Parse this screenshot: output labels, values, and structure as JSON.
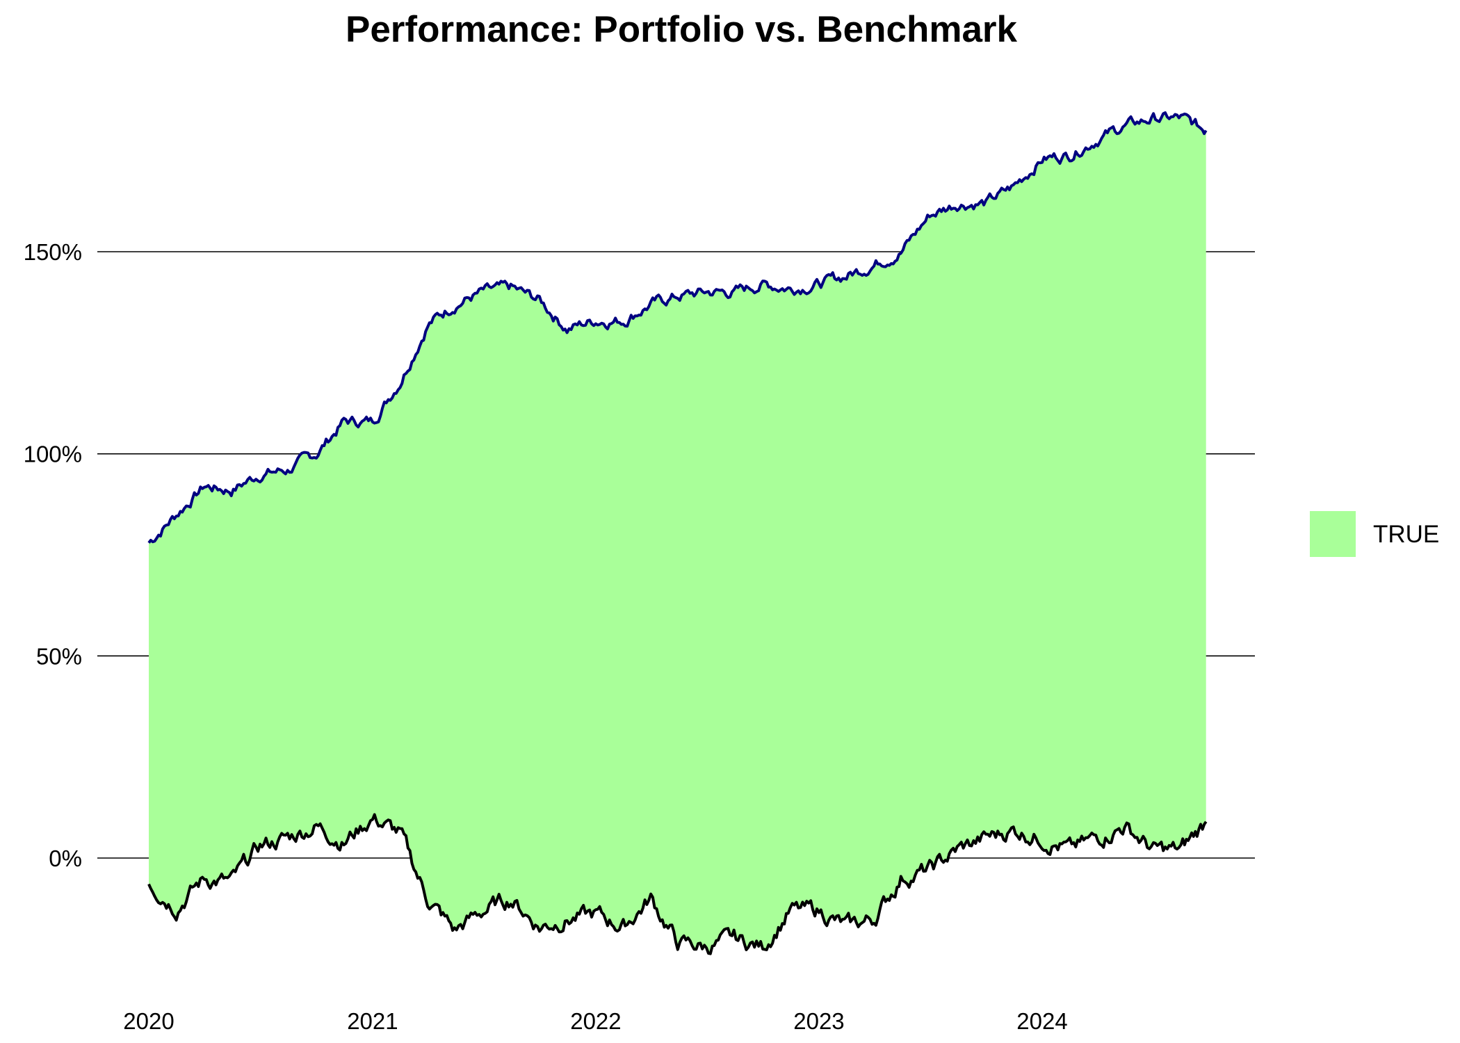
{
  "chart_data": {
    "type": "area",
    "title": "Performance: Portfolio vs. Benchmark",
    "xlabel": "",
    "ylabel": "",
    "x_tick_labels": [
      "2020",
      "2021",
      "2022",
      "2023",
      "2024"
    ],
    "y_tick_labels": [
      "0%",
      "50%",
      "100%",
      "150%"
    ],
    "y_tick_values": [
      0,
      50,
      100,
      150
    ],
    "xlim": [
      "2020-01-01",
      "2024-10-01"
    ],
    "ylim": [
      -32,
      192
    ],
    "grid": "horizontal",
    "legend_position": "right",
    "legend": [
      {
        "label": "TRUE",
        "color": "#a9ff99"
      }
    ],
    "colors": {
      "fill": "#a9ff99",
      "upper_line": "#000080",
      "lower_line": "#000000",
      "grid": "#000000"
    },
    "upper_series": {
      "x": [
        "2020-01-01",
        "2020-02-15",
        "2020-04-01",
        "2020-05-15",
        "2020-07-01",
        "2020-08-15",
        "2020-10-01",
        "2020-11-15",
        "2021-01-01",
        "2021-02-15",
        "2021-04-01",
        "2021-05-15",
        "2021-07-01",
        "2021-08-15",
        "2021-10-01",
        "2021-11-15",
        "2022-01-01",
        "2022-02-15",
        "2022-04-01",
        "2022-05-15",
        "2022-07-01",
        "2022-08-15",
        "2022-10-01",
        "2022-11-15",
        "2023-01-01",
        "2023-02-15",
        "2023-04-01",
        "2023-05-15",
        "2023-07-01",
        "2023-08-15",
        "2023-10-01",
        "2023-11-15",
        "2024-01-01",
        "2024-02-15",
        "2024-04-01",
        "2024-05-15",
        "2024-07-01",
        "2024-08-15",
        "2024-09-25"
      ],
      "y": [
        78,
        85,
        92,
        91,
        95,
        96,
        100,
        108,
        108,
        118,
        132,
        137,
        140,
        141,
        138,
        131,
        133,
        133,
        137,
        139,
        140,
        140,
        142,
        141,
        142,
        144,
        147,
        150,
        159,
        162,
        162,
        166,
        173,
        174,
        178,
        181,
        183,
        183,
        180
      ]
    },
    "lower_series": {
      "x": [
        "2020-01-01",
        "2020-02-15",
        "2020-04-01",
        "2020-05-15",
        "2020-07-01",
        "2020-08-15",
        "2020-10-01",
        "2020-11-15",
        "2021-01-01",
        "2021-02-15",
        "2021-04-01",
        "2021-05-15",
        "2021-07-01",
        "2021-08-15",
        "2021-10-01",
        "2021-11-15",
        "2022-01-01",
        "2022-02-15",
        "2022-04-01",
        "2022-05-15",
        "2022-07-01",
        "2022-08-15",
        "2022-10-01",
        "2022-11-15",
        "2023-01-01",
        "2023-02-15",
        "2023-04-01",
        "2023-05-15",
        "2023-07-01",
        "2023-08-15",
        "2023-10-01",
        "2023-11-15",
        "2024-01-01",
        "2024-02-15",
        "2024-04-01",
        "2024-05-15",
        "2024-07-01",
        "2024-08-15",
        "2024-09-25"
      ],
      "y": [
        -6,
        -12,
        -5,
        -6,
        3,
        5,
        8,
        4,
        10,
        6,
        -10,
        -18,
        -13,
        -10,
        -17,
        -15,
        -14,
        -17,
        -10,
        -21,
        -22,
        -20,
        -22,
        -13,
        -13,
        -17,
        -15,
        -5,
        -3,
        2,
        5,
        7,
        5,
        2,
        5,
        8,
        2,
        2,
        9
      ]
    }
  }
}
